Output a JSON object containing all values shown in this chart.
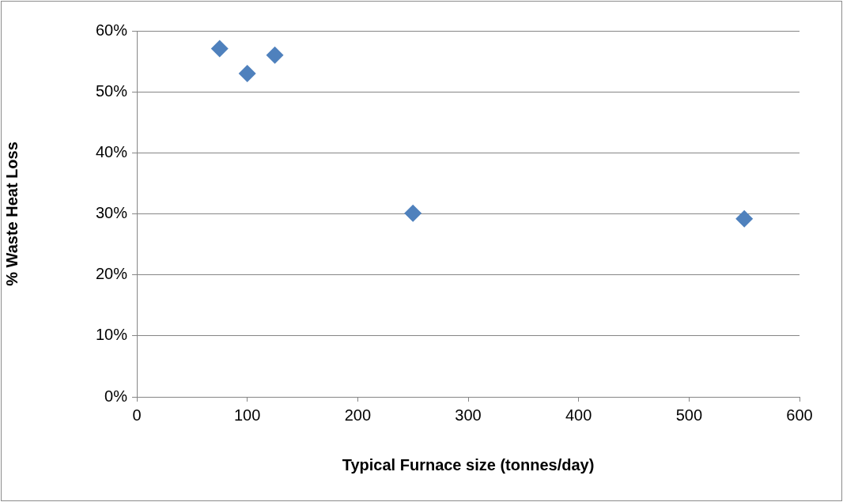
{
  "chart_data": {
    "type": "scatter",
    "xlabel": "Typical Furnace size (tonnes/day)",
    "ylabel": "% Waste Heat Loss",
    "x": [
      75,
      100,
      125,
      250,
      550
    ],
    "series": [
      {
        "color": "#4f81bd",
        "values": [
          57.1,
          53.0,
          56.0,
          30.1,
          29.2
        ]
      }
    ],
    "xlim": [
      0,
      600
    ],
    "xticks": [
      0,
      100,
      200,
      300,
      400,
      500,
      600
    ],
    "ylim": [
      0,
      60
    ],
    "yticks": [
      {
        "value": 0,
        "label": "0%"
      },
      {
        "value": 10,
        "label": "10%"
      },
      {
        "value": 20,
        "label": "20%"
      },
      {
        "value": 30,
        "label": "30%"
      },
      {
        "value": 40,
        "label": "40%"
      },
      {
        "value": 50,
        "label": "50%"
      },
      {
        "value": 60,
        "label": "60%"
      }
    ],
    "grid": "y",
    "legend": false,
    "marker": "diamond"
  }
}
